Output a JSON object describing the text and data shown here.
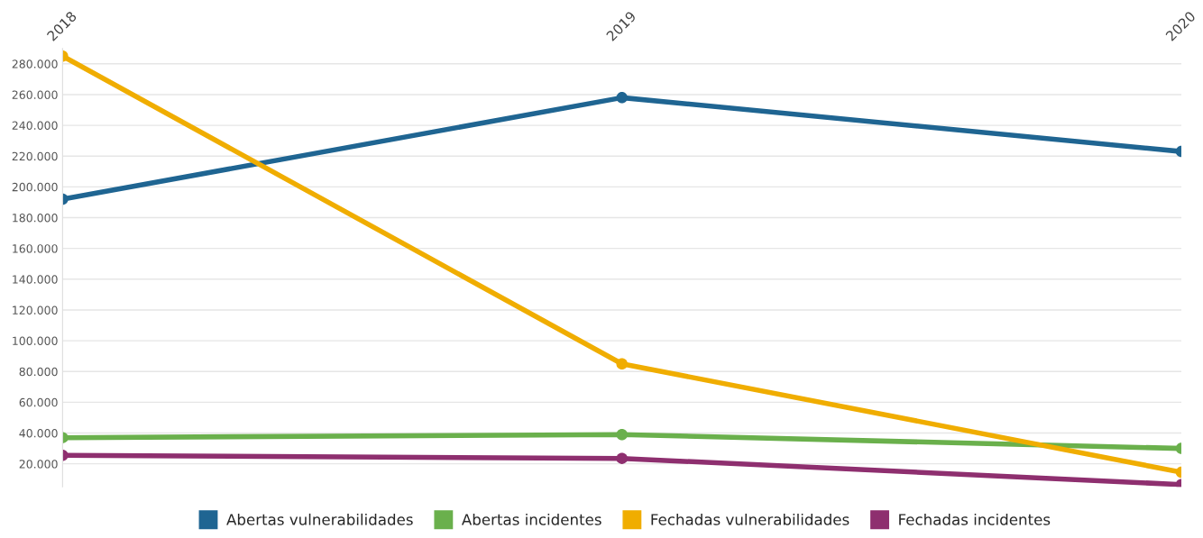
{
  "chart_data": {
    "type": "line",
    "categories": [
      "2018",
      "2019",
      "2020"
    ],
    "series": [
      {
        "name": "Abertas vulnerabilidades",
        "color": "#1f6592",
        "values": [
          192000,
          258000,
          223000
        ]
      },
      {
        "name": "Abertas incidentes",
        "color": "#6ab04c",
        "values": [
          37000,
          39000,
          30000
        ]
      },
      {
        "name": "Fechadas vulnerabilidades",
        "color": "#f0ad00",
        "values": [
          285000,
          85000,
          14500
        ]
      },
      {
        "name": "Fechadas incidentes",
        "color": "#8e2f6f",
        "values": [
          25500,
          23500,
          6500
        ]
      }
    ],
    "ylim": [
      5000,
      290000
    ],
    "yticks": [
      {
        "value": 20000,
        "label": "20.000"
      },
      {
        "value": 40000,
        "label": "40.000"
      },
      {
        "value": 60000,
        "label": "60.000"
      },
      {
        "value": 80000,
        "label": "80.000"
      },
      {
        "value": 100000,
        "label": "100.000"
      },
      {
        "value": 120000,
        "label": "120.000"
      },
      {
        "value": 140000,
        "label": "140.000"
      },
      {
        "value": 160000,
        "label": "160.000"
      },
      {
        "value": 180000,
        "label": "180.000"
      },
      {
        "value": 200000,
        "label": "200.000"
      },
      {
        "value": 220000,
        "label": "220.000"
      },
      {
        "value": 240000,
        "label": "240.000"
      },
      {
        "value": 260000,
        "label": "260.000"
      },
      {
        "value": 280000,
        "label": "280.000"
      }
    ],
    "grid": "y",
    "legend": "bottom",
    "marker": "circle",
    "line_style": "solid"
  }
}
